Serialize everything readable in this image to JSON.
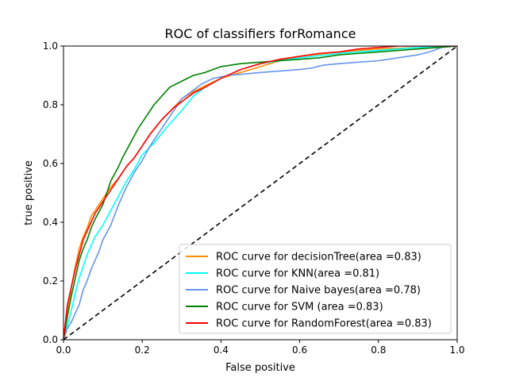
{
  "chart_data": {
    "type": "line",
    "title": "ROC of classifiers forRomance",
    "xlabel": "False positive",
    "ylabel": "true positive",
    "xlim": [
      0,
      1
    ],
    "ylim": [
      0,
      1
    ],
    "xticks": [
      "0.0",
      "0.2",
      "0.4",
      "0.6",
      "0.8",
      "1.0"
    ],
    "yticks": [
      "0.0",
      "0.2",
      "0.4",
      "0.6",
      "0.8",
      "1.0"
    ],
    "grid": false,
    "legend_position": "lower-right",
    "series": [
      {
        "name": "ROC curve for decisionTree(area =0.83)",
        "color": "#ff8c00",
        "x": [
          0,
          0.005,
          0.01,
          0.015,
          0.02,
          0.03,
          0.04,
          0.05,
          0.06,
          0.07,
          0.08,
          0.1,
          0.12,
          0.14,
          0.16,
          0.18,
          0.2,
          0.22,
          0.25,
          0.28,
          0.3,
          0.33,
          0.36,
          0.4,
          0.45,
          0.5,
          0.55,
          0.6,
          0.7,
          0.8,
          0.9,
          1.0
        ],
        "y": [
          0,
          0.05,
          0.1,
          0.13,
          0.18,
          0.25,
          0.31,
          0.35,
          0.38,
          0.42,
          0.44,
          0.48,
          0.52,
          0.55,
          0.59,
          0.62,
          0.66,
          0.7,
          0.75,
          0.79,
          0.82,
          0.845,
          0.865,
          0.89,
          0.91,
          0.93,
          0.95,
          0.965,
          0.98,
          0.99,
          0.995,
          1.0
        ]
      },
      {
        "name": "ROC curve for KNN(area =0.81)",
        "color": "#00ffff",
        "x": [
          0,
          0.01,
          0.02,
          0.03,
          0.04,
          0.05,
          0.06,
          0.07,
          0.08,
          0.1,
          0.12,
          0.14,
          0.16,
          0.18,
          0.2,
          0.23,
          0.26,
          0.3,
          0.33,
          0.36,
          0.4,
          0.45,
          0.5,
          0.6,
          0.7,
          0.8,
          0.9,
          1.0
        ],
        "y": [
          0,
          0.05,
          0.1,
          0.16,
          0.21,
          0.25,
          0.29,
          0.32,
          0.35,
          0.39,
          0.44,
          0.49,
          0.54,
          0.58,
          0.63,
          0.67,
          0.72,
          0.78,
          0.83,
          0.86,
          0.89,
          0.92,
          0.94,
          0.96,
          0.975,
          0.985,
          0.995,
          1.0
        ]
      },
      {
        "name": "ROC curve for Naive bayes(area =0.78)",
        "color": "#6495ed",
        "x": [
          0,
          0.01,
          0.02,
          0.03,
          0.04,
          0.05,
          0.06,
          0.07,
          0.08,
          0.09,
          0.1,
          0.12,
          0.14,
          0.16,
          0.18,
          0.2,
          0.22,
          0.25,
          0.28,
          0.3,
          0.32,
          0.35,
          0.38,
          0.42,
          0.46,
          0.5,
          0.55,
          0.6,
          0.63,
          0.66,
          0.7,
          0.75,
          0.8,
          0.85,
          0.9,
          0.93,
          0.96,
          1.0
        ],
        "y": [
          0,
          0.04,
          0.06,
          0.09,
          0.12,
          0.17,
          0.2,
          0.24,
          0.27,
          0.3,
          0.34,
          0.39,
          0.46,
          0.52,
          0.57,
          0.61,
          0.66,
          0.72,
          0.78,
          0.82,
          0.84,
          0.87,
          0.89,
          0.9,
          0.905,
          0.91,
          0.915,
          0.92,
          0.925,
          0.935,
          0.94,
          0.945,
          0.95,
          0.96,
          0.97,
          0.98,
          0.995,
          1.0
        ]
      },
      {
        "name": "ROC curve for SVM (area =0.83)",
        "color": "#008000",
        "x": [
          0,
          0.005,
          0.01,
          0.02,
          0.03,
          0.04,
          0.05,
          0.06,
          0.07,
          0.08,
          0.1,
          0.12,
          0.14,
          0.15,
          0.17,
          0.19,
          0.21,
          0.23,
          0.25,
          0.27,
          0.3,
          0.33,
          0.36,
          0.4,
          0.45,
          0.5,
          0.55,
          0.6,
          0.65,
          0.7,
          0.75,
          0.8,
          0.85,
          0.9,
          0.95,
          1.0
        ],
        "y": [
          0,
          0.04,
          0.08,
          0.15,
          0.21,
          0.27,
          0.31,
          0.34,
          0.38,
          0.41,
          0.46,
          0.54,
          0.59,
          0.62,
          0.67,
          0.72,
          0.76,
          0.8,
          0.83,
          0.86,
          0.88,
          0.9,
          0.91,
          0.93,
          0.94,
          0.945,
          0.95,
          0.955,
          0.96,
          0.97,
          0.975,
          0.98,
          0.985,
          0.99,
          0.995,
          1.0
        ]
      },
      {
        "name": "ROC curve for RandomForest(area =0.83)",
        "color": "#ff0000",
        "x": [
          0,
          0.005,
          0.01,
          0.02,
          0.03,
          0.04,
          0.05,
          0.06,
          0.07,
          0.08,
          0.1,
          0.12,
          0.14,
          0.16,
          0.18,
          0.2,
          0.22,
          0.25,
          0.28,
          0.3,
          0.33,
          0.36,
          0.4,
          0.45,
          0.5,
          0.55,
          0.6,
          0.65,
          0.7,
          0.75,
          0.8,
          0.85,
          0.9,
          0.95,
          1.0
        ],
        "y": [
          0,
          0.06,
          0.12,
          0.18,
          0.24,
          0.29,
          0.34,
          0.37,
          0.4,
          0.43,
          0.47,
          0.51,
          0.55,
          0.59,
          0.62,
          0.66,
          0.7,
          0.75,
          0.79,
          0.81,
          0.84,
          0.86,
          0.89,
          0.92,
          0.94,
          0.955,
          0.965,
          0.975,
          0.98,
          0.99,
          0.995,
          1.0,
          1.0,
          1.0,
          1.0
        ]
      }
    ],
    "reference_line": {
      "x": [
        0,
        1
      ],
      "y": [
        0,
        1
      ],
      "color": "#000000",
      "style": "dashed"
    }
  }
}
